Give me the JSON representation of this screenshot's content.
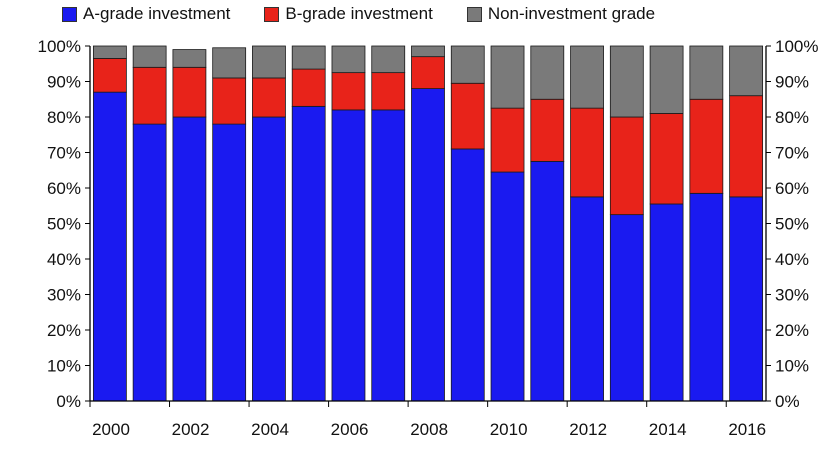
{
  "chart_data": {
    "type": "bar",
    "stacked": true,
    "categories": [
      "2000",
      "2001",
      "2002",
      "2003",
      "2004",
      "2005",
      "2006",
      "2007",
      "2008",
      "2009",
      "2010",
      "2011",
      "2012",
      "2013",
      "2014",
      "2015",
      "2016"
    ],
    "x_tick_labels": [
      "2000",
      "2002",
      "2004",
      "2006",
      "2008",
      "2010",
      "2012",
      "2014",
      "2016"
    ],
    "ylim": [
      0,
      100
    ],
    "y_ticks": [
      "0%",
      "10%",
      "20%",
      "30%",
      "40%",
      "50%",
      "60%",
      "70%",
      "80%",
      "90%",
      "100%"
    ],
    "y_axis_sides": [
      "left",
      "right"
    ],
    "legend_position": "top",
    "series": [
      {
        "name": "A-grade investment",
        "color": "#1a1af0",
        "values": [
          87,
          78,
          80,
          78,
          80,
          83,
          82,
          82,
          88,
          71,
          64.5,
          67.5,
          57.5,
          52.5,
          55.5,
          58.5,
          57.5
        ]
      },
      {
        "name": "B-grade investment",
        "color": "#e8231a",
        "values": [
          9.5,
          16,
          14,
          13,
          11,
          10.5,
          10.5,
          10.5,
          9,
          18.5,
          18,
          17.5,
          25,
          27.5,
          25.5,
          26.5,
          28.5
        ]
      },
      {
        "name": "Non-investment grade",
        "color": "#7a7a7a",
        "values": [
          3.5,
          6,
          5,
          8.5,
          9,
          6.5,
          7.5,
          7.5,
          3,
          10.5,
          17.5,
          15,
          17.5,
          20,
          19,
          15,
          14
        ]
      }
    ]
  }
}
